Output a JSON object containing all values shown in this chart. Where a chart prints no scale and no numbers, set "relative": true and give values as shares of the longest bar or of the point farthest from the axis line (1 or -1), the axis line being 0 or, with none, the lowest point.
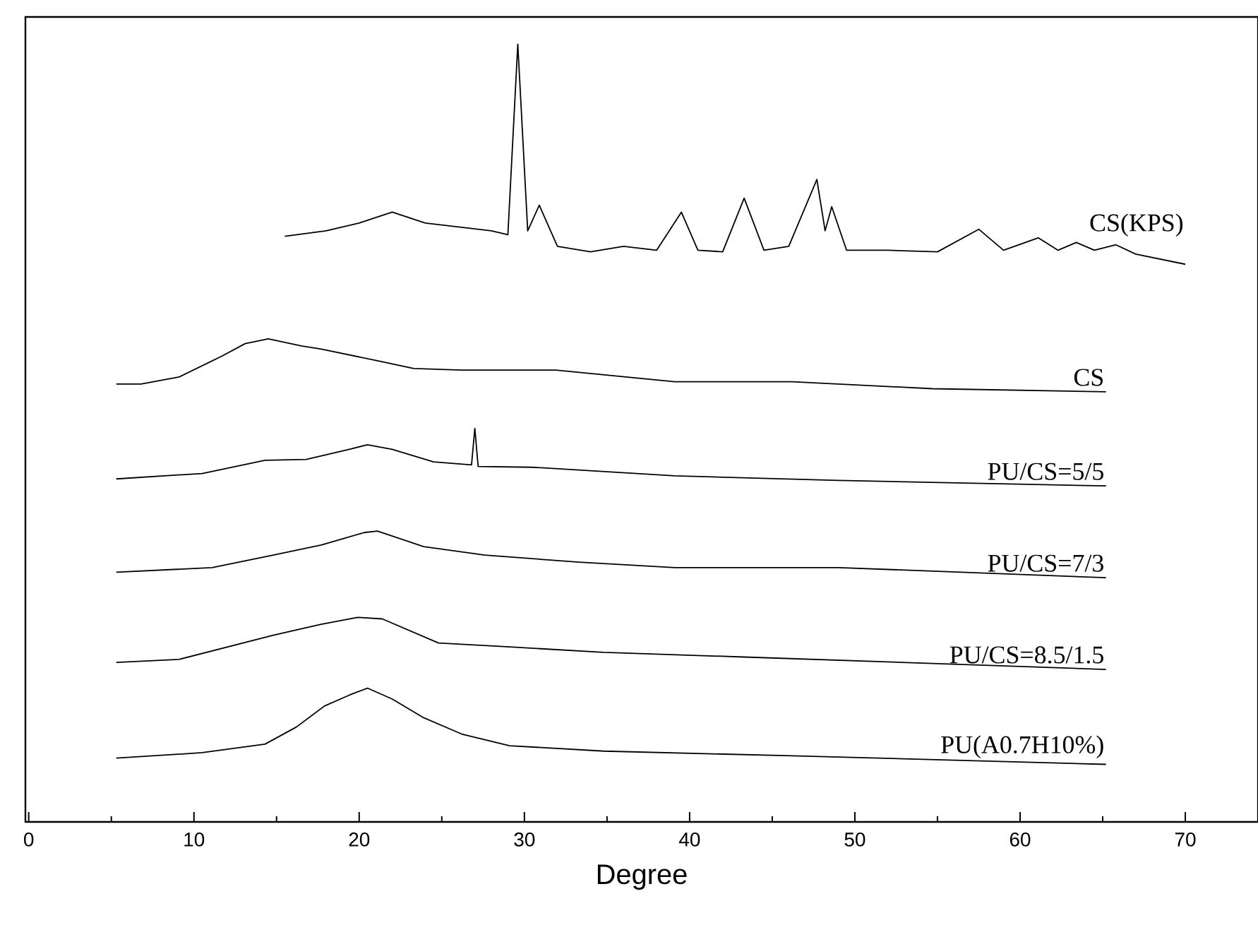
{
  "chart_data": {
    "type": "line",
    "xlabel": "Degree",
    "relative": true,
    "xlim": [
      -0.2,
      74.4
    ],
    "xticks": [
      0,
      10,
      20,
      30,
      40,
      50,
      60,
      70
    ],
    "tick_labels": "x",
    "grid": false,
    "marker": "none",
    "line_style": "solid",
    "series": [
      {
        "name": "CS(KPS)",
        "color": "#000000",
        "x": [
          15.5,
          18,
          20,
          22,
          24,
          26,
          28,
          29,
          29.6,
          30.2,
          30.9,
          32,
          34,
          36,
          38,
          39.5,
          40.5,
          42,
          43.3,
          44.5,
          46,
          47.7,
          48.2,
          48.6,
          49.5,
          52,
          55,
          57.5,
          59,
          61.1,
          62.3,
          63.4,
          64.5,
          65.8,
          67,
          70
        ],
        "values": [
          0.753,
          0.76,
          0.77,
          0.784,
          0.77,
          0.765,
          0.76,
          0.755,
          1.0,
          0.76,
          0.793,
          0.74,
          0.733,
          0.74,
          0.735,
          0.784,
          0.735,
          0.733,
          0.802,
          0.735,
          0.74,
          0.826,
          0.76,
          0.791,
          0.735,
          0.735,
          0.733,
          0.762,
          0.735,
          0.751,
          0.735,
          0.745,
          0.735,
          0.742,
          0.73,
          0.717
        ]
      },
      {
        "name": "CS",
        "color": "#000000",
        "x": [
          5.3,
          6.8,
          9.1,
          11.7,
          13.1,
          14.5,
          16.5,
          17.7,
          21.1,
          23.3,
          26.2,
          31.9,
          39.1,
          46.2,
          54.7,
          65.2
        ],
        "values": [
          0.563,
          0.563,
          0.572,
          0.599,
          0.615,
          0.621,
          0.612,
          0.608,
          0.593,
          0.583,
          0.581,
          0.581,
          0.566,
          0.566,
          0.557,
          0.553
        ]
      },
      {
        "name": "PU/CS=5/5",
        "color": "#000000",
        "x": [
          5.3,
          10.5,
          14.3,
          16.8,
          19.4,
          20.5,
          22,
          24.5,
          26.8,
          27,
          27.2,
          30.5,
          39.1,
          49,
          65.2
        ],
        "values": [
          0.441,
          0.448,
          0.465,
          0.466,
          0.479,
          0.485,
          0.479,
          0.463,
          0.459,
          0.506,
          0.457,
          0.456,
          0.445,
          0.439,
          0.432
        ]
      },
      {
        "name": "PU/CS=7/3",
        "color": "#000000",
        "x": [
          5.3,
          11.1,
          14.8,
          17.7,
          20.3,
          21.1,
          23.9,
          27.6,
          33.3,
          39.1,
          49,
          65.2
        ],
        "values": [
          0.321,
          0.327,
          0.343,
          0.356,
          0.372,
          0.374,
          0.354,
          0.343,
          0.334,
          0.327,
          0.327,
          0.314
        ]
      },
      {
        "name": "PU/CS=8.5/1.5",
        "color": "#000000",
        "x": [
          5.3,
          9.1,
          14.8,
          17.7,
          19.9,
          21.4,
          24.8,
          29.1,
          34.8,
          43.3,
          65.2
        ],
        "values": [
          0.205,
          0.209,
          0.24,
          0.254,
          0.263,
          0.261,
          0.23,
          0.225,
          0.218,
          0.212,
          0.196
        ]
      },
      {
        "name": "PU(A0.7H10%)",
        "color": "#000000",
        "x": [
          5.3,
          10.5,
          14.3,
          16.2,
          17.9,
          19.4,
          20.5,
          22,
          23.9,
          26.2,
          29.1,
          34.8,
          46.2,
          65.2
        ],
        "values": [
          0.082,
          0.089,
          0.1,
          0.122,
          0.149,
          0.163,
          0.172,
          0.158,
          0.134,
          0.113,
          0.098,
          0.091,
          0.085,
          0.074
        ]
      }
    ]
  }
}
